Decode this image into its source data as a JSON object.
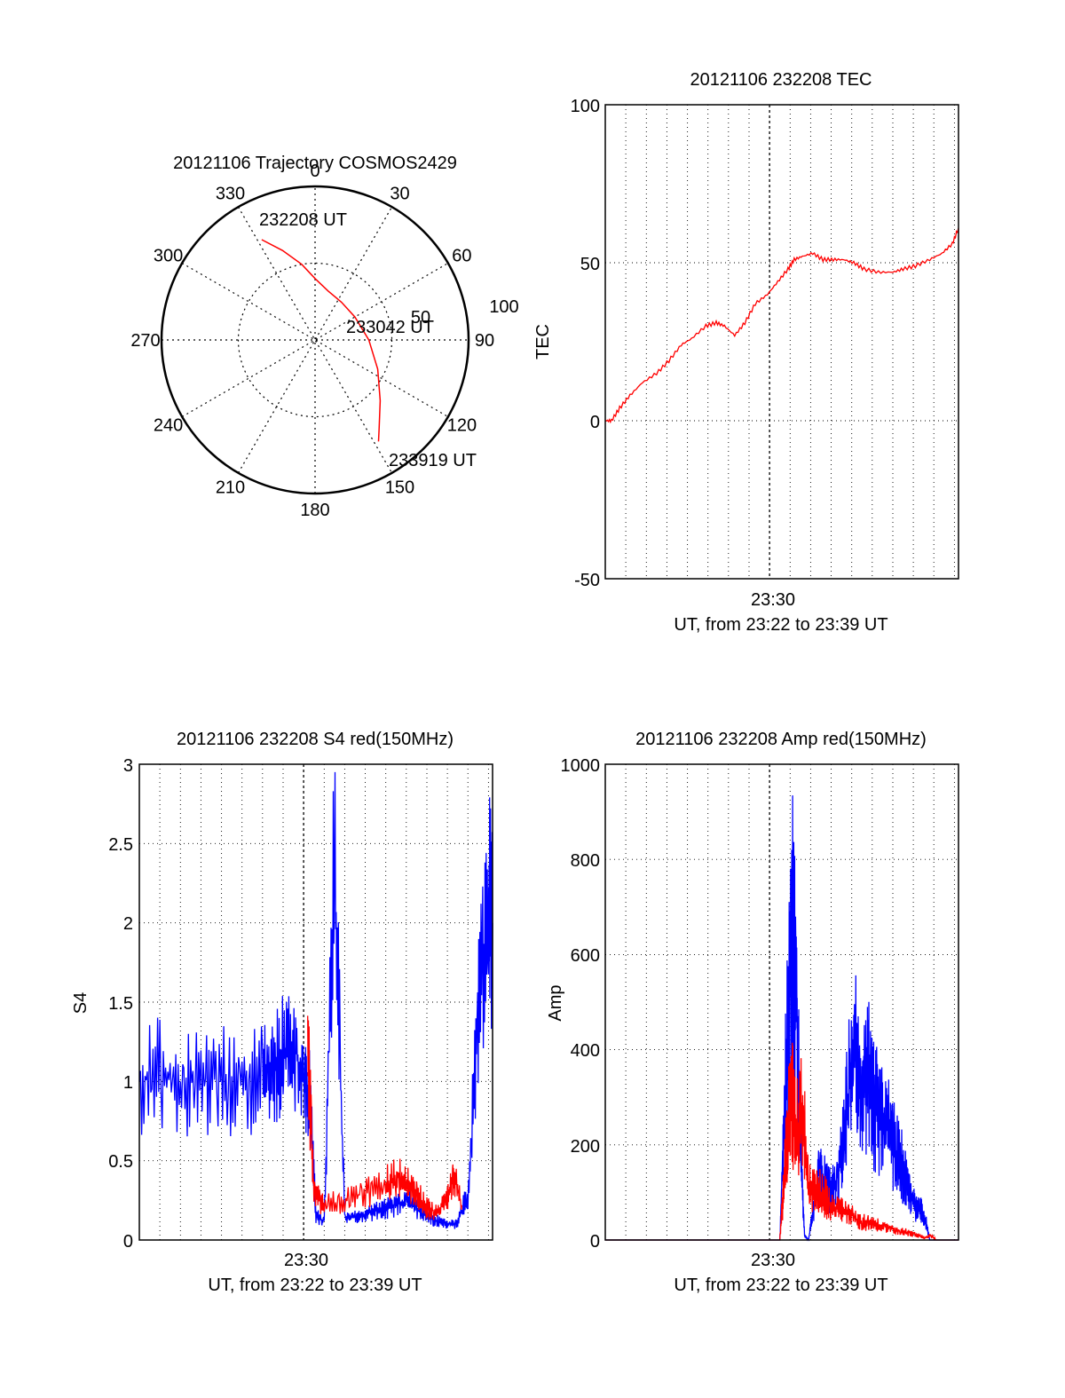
{
  "chart_data": [
    {
      "type": "polar",
      "title": "20121106 Trajectory COSMOS2429",
      "angle_ticks": [
        "0",
        "30",
        "60",
        "90",
        "120",
        "150",
        "180",
        "210",
        "240",
        "270",
        "300",
        "330"
      ],
      "radial_ticks": [
        "50",
        "100"
      ],
      "series": [
        {
          "color": "#ff0000",
          "points": [
            [
              332,
              74
            ],
            [
              340,
              62
            ],
            [
              350,
              50
            ],
            [
              0,
              40
            ],
            [
              15,
              33
            ],
            [
              35,
              30
            ],
            [
              60,
              30
            ],
            [
              90,
              35
            ],
            [
              115,
              45
            ],
            [
              133,
              58
            ],
            [
              144,
              71
            ],
            [
              148,
              78
            ]
          ]
        }
      ],
      "annotations": [
        {
          "text": "232208 UT",
          "az": 332,
          "elev": 74
        },
        {
          "text": "233042 UT",
          "az": 76,
          "elev": 33
        },
        {
          "text": "233919 UT",
          "az": 148,
          "elev": 78
        }
      ]
    },
    {
      "type": "line",
      "title": "20121106 232208 TEC",
      "ylabel": "TEC",
      "xlabel": "UT, from 23:22 to 23:39 UT",
      "x_ticks": [
        "23:30"
      ],
      "y_ticks": [
        "100",
        "50",
        "0",
        "-50"
      ],
      "ylim": [
        -50,
        100
      ],
      "xlim_minutes": [
        0,
        17.2
      ],
      "grid": true,
      "series": [
        {
          "color": "#ff0000",
          "x": [
            0,
            0.3,
            0.7,
            1.2,
            1.8,
            2.5,
            3.1,
            3.7,
            4.2,
            4.9,
            5.4,
            5.8,
            6.3,
            6.8,
            7.3,
            7.9,
            8.4,
            8.9,
            9.2,
            9.6,
            10.1,
            10.6,
            11.1,
            11.6,
            12.1,
            12.6,
            13.3,
            14,
            14.5,
            15.1,
            15.8,
            16.4,
            16.9,
            17.2
          ],
          "y": [
            0,
            0,
            4,
            8,
            12,
            15,
            19,
            24,
            26,
            30,
            31,
            30,
            27,
            31,
            37,
            40,
            44,
            48,
            51,
            52,
            53,
            51,
            51,
            51,
            50,
            48,
            47,
            47,
            48,
            49,
            51,
            53,
            56,
            61
          ]
        }
      ]
    },
    {
      "type": "line",
      "title": "20121106 232208 S4 red(150MHz)",
      "ylabel": "S4",
      "xlabel": "UT, from 23:22 to 23:39 UT",
      "x_ticks": [
        "23:30"
      ],
      "y_ticks": [
        "3",
        "2.5",
        "2",
        "1.5",
        "1",
        "0.5",
        "0"
      ],
      "ylim": [
        0,
        3
      ],
      "xlim_minutes": [
        0,
        17.2
      ],
      "grid": true,
      "series": [
        {
          "color": "#0000ff",
          "x": [
            0,
            1,
            2,
            3,
            4,
            5,
            6,
            6.5,
            7,
            7.5,
            8,
            8.3,
            8.6,
            9,
            9.5,
            10,
            10.5,
            11,
            11.5,
            12,
            12.5,
            13,
            13.5,
            14,
            14.5,
            15,
            15.5,
            16,
            16.5,
            17,
            17.2
          ],
          "y": [
            1.0,
            1.05,
            0.98,
            1.0,
            1.02,
            0.97,
            1.0,
            1.05,
            1.2,
            1.25,
            1.0,
            0.9,
            0.15,
            0.12,
            2.4,
            0.14,
            0.14,
            0.16,
            0.18,
            0.2,
            0.22,
            0.25,
            0.2,
            0.16,
            0.12,
            0.1,
            0.1,
            0.3,
            1.4,
            2.1,
            2.0
          ]
        },
        {
          "color": "#ff0000",
          "x": [
            8.2,
            8.5,
            9,
            10,
            11,
            12,
            12.5,
            13,
            13.5,
            14,
            14.5,
            15,
            15.3,
            15.7
          ],
          "y": [
            1.2,
            0.3,
            0.22,
            0.25,
            0.3,
            0.35,
            0.4,
            0.38,
            0.3,
            0.2,
            0.18,
            0.25,
            0.4,
            0.22
          ]
        }
      ]
    },
    {
      "type": "line",
      "title": "20121106 232208 Amp red(150MHz)",
      "ylabel": "Amp",
      "xlabel": "UT, from 23:22 to 23:39 UT",
      "x_ticks": [
        "23:30"
      ],
      "y_ticks": [
        "1000",
        "800",
        "600",
        "400",
        "200",
        "0"
      ],
      "ylim": [
        0,
        1000
      ],
      "xlim_minutes": [
        0,
        17.2
      ],
      "grid": true,
      "series": [
        {
          "color": "#0000ff",
          "x": [
            0,
            8.5,
            8.7,
            8.9,
            9.1,
            9.3,
            9.5,
            9.7,
            9.9,
            10.1,
            10.4,
            10.7,
            11,
            11.3,
            11.6,
            11.9,
            12.2,
            12.5,
            12.8,
            13.1,
            13.4,
            13.7,
            14,
            14.3,
            14.6,
            14.9,
            15.2,
            15.5,
            15.8,
            16.2,
            17.2
          ],
          "y": [
            0,
            0,
            250,
            450,
            650,
            520,
            200,
            10,
            0,
            60,
            150,
            120,
            100,
            130,
            200,
            330,
            380,
            300,
            350,
            280,
            260,
            250,
            200,
            180,
            130,
            90,
            60,
            60,
            0,
            0,
            0
          ]
        },
        {
          "color": "#ff0000",
          "x": [
            0,
            8.5,
            8.7,
            8.9,
            9.1,
            9.3,
            9.6,
            9.9,
            10.3,
            10.7,
            11.1,
            11.5,
            11.9,
            12.3,
            12.8,
            13.3,
            13.8,
            14.3,
            14.8,
            15.2,
            15.6,
            15.9,
            16.1,
            17.2
          ],
          "y": [
            0,
            0,
            120,
            250,
            300,
            220,
            280,
            120,
            110,
            90,
            70,
            60,
            55,
            40,
            35,
            30,
            25,
            20,
            15,
            10,
            5,
            10,
            0,
            0
          ]
        }
      ]
    }
  ]
}
